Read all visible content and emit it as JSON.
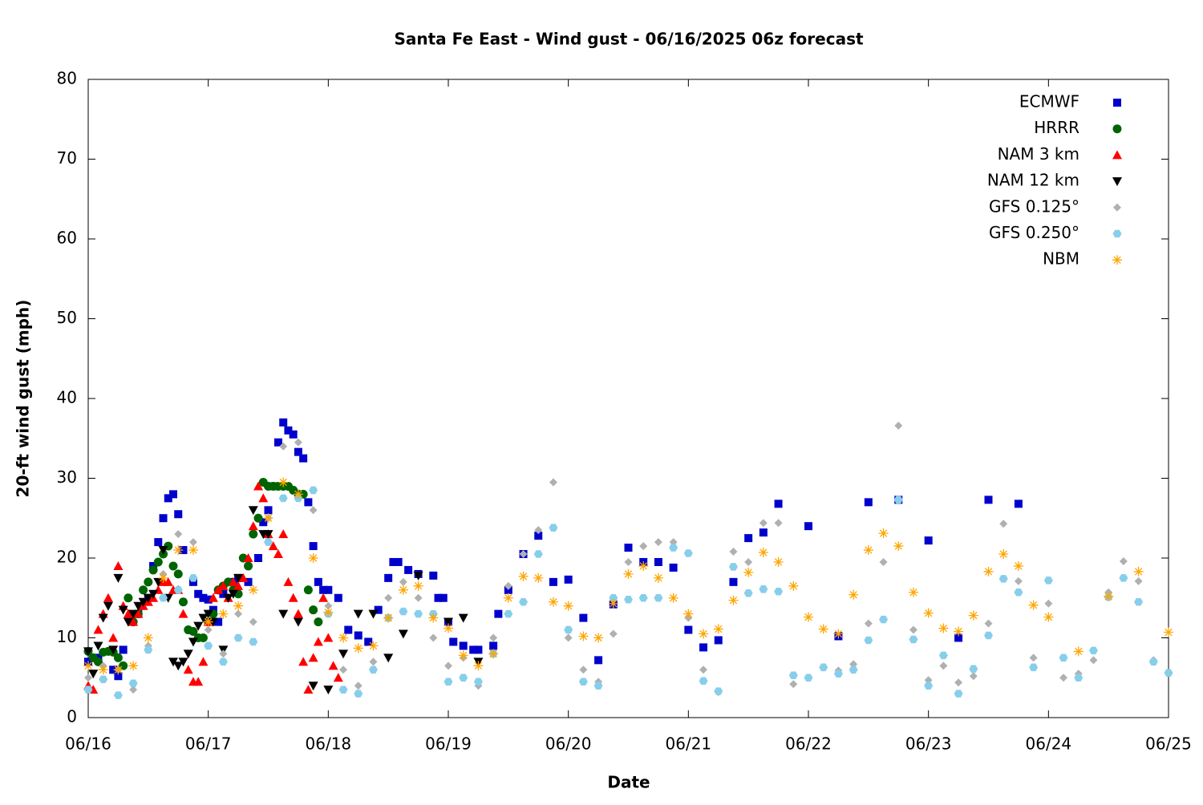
{
  "chart_data": {
    "type": "scatter",
    "title": "Santa Fe East - Wind gust - 06/16/2025 06z forecast",
    "x_label": "Date",
    "y_label": "20-ft wind gust (mph)",
    "xlim": [
      0,
      216
    ],
    "ylim": [
      0,
      80
    ],
    "xticks": [
      {
        "value": 0,
        "label": "06/16"
      },
      {
        "value": 24,
        "label": "06/17"
      },
      {
        "value": 48,
        "label": "06/18"
      },
      {
        "value": 72,
        "label": "06/19"
      },
      {
        "value": 96,
        "label": "06/20"
      },
      {
        "value": 120,
        "label": "06/21"
      },
      {
        "value": 144,
        "label": "06/22"
      },
      {
        "value": 168,
        "label": "06/23"
      },
      {
        "value": 192,
        "label": "06/24"
      },
      {
        "value": 216,
        "label": "06/25"
      }
    ],
    "yticks": [
      0,
      10,
      20,
      30,
      40,
      50,
      60,
      70,
      80
    ],
    "legend": "upper right",
    "series": [
      {
        "name": "ECMWF",
        "color": "#0000cc",
        "marker": "square",
        "x": [
          0,
          2,
          5,
          6,
          7,
          10,
          12,
          13,
          14,
          15,
          16,
          17,
          18,
          19,
          21,
          22,
          23,
          24,
          25,
          26,
          27,
          29,
          30,
          32,
          34,
          35,
          36,
          37,
          38,
          39,
          40,
          41,
          42,
          43,
          44,
          45,
          46,
          47,
          48,
          50,
          52,
          54,
          56,
          58,
          60,
          61,
          62,
          64,
          66,
          69,
          70,
          71,
          72,
          73,
          75,
          77,
          78,
          81,
          82,
          84,
          87,
          90,
          93,
          96,
          99,
          102,
          105,
          108,
          111,
          114,
          117,
          120,
          123,
          126,
          129,
          132,
          135,
          138,
          144,
          150,
          156,
          162,
          168,
          174,
          180,
          186
        ],
        "values": [
          7,
          7.5,
          6,
          5.2,
          8.5,
          13,
          15,
          19,
          22,
          25,
          27.5,
          28,
          25.5,
          21,
          17,
          15.5,
          15,
          14.8,
          13.5,
          12,
          15.5,
          17,
          17.5,
          17,
          20,
          24.5,
          26,
          29,
          34.5,
          37,
          36,
          35.5,
          33.3,
          32.5,
          27,
          21.5,
          17,
          16,
          16,
          15,
          11,
          10.3,
          9.5,
          13.5,
          17.5,
          19.5,
          19.5,
          18.5,
          18,
          17.8,
          15,
          15,
          12,
          9.5,
          9,
          8.5,
          8.5,
          9,
          13,
          16,
          20.5,
          22.8,
          17,
          17.3,
          12.5,
          7.2,
          14.2,
          21.3,
          19.5,
          19.5,
          18.8,
          11,
          8.8,
          9.7,
          17,
          22.5,
          23.2,
          26.8,
          24,
          10.2,
          27,
          27.3,
          22.2,
          10,
          27.3,
          26.8
        ]
      },
      {
        "name": "HRRR",
        "color": "#006400",
        "marker": "circle",
        "x": [
          0,
          1,
          2,
          3,
          4,
          5,
          6,
          7,
          8,
          9,
          10,
          11,
          12,
          13,
          14,
          15,
          16,
          17,
          18,
          19,
          20,
          21,
          22,
          23,
          24,
          25,
          26,
          27,
          28,
          29,
          30,
          31,
          32,
          33,
          34,
          35,
          36,
          37,
          38,
          39,
          40,
          41,
          42,
          43,
          44,
          45,
          46
        ],
        "values": [
          8.3,
          7.5,
          7,
          8.2,
          8.3,
          8.2,
          7.5,
          6.5,
          15,
          12,
          13,
          16,
          17,
          18.5,
          19.5,
          20.5,
          21.5,
          19,
          18,
          14.5,
          11,
          10.8,
          10,
          10,
          12,
          13,
          16,
          16.5,
          17,
          16,
          15.5,
          20,
          19,
          23,
          25,
          29.5,
          29,
          29,
          29,
          29,
          29,
          28.5,
          28,
          28,
          16,
          13.5,
          12
        ]
      },
      {
        "name": "NAM 3 km",
        "color": "#ff0000",
        "marker": "triangle-up",
        "x": [
          0,
          1,
          2,
          3,
          4,
          5,
          6,
          7,
          8,
          9,
          10,
          11,
          12,
          13,
          14,
          15,
          16,
          17,
          18,
          19,
          20,
          21,
          22,
          23,
          24,
          25,
          26,
          27,
          28,
          29,
          30,
          31,
          32,
          33,
          34,
          35,
          36,
          37,
          38,
          39,
          40,
          41,
          42,
          43,
          44,
          45,
          46,
          47,
          48,
          49,
          50
        ],
        "values": [
          4,
          3.5,
          11,
          13,
          15,
          10,
          19,
          14,
          13,
          12,
          13,
          14,
          14.5,
          15,
          16,
          17,
          17,
          16,
          16,
          13,
          6,
          4.5,
          4.5,
          7,
          12,
          15,
          16,
          16.5,
          15,
          17,
          16.5,
          17.5,
          20,
          24,
          29,
          27.5,
          23,
          21.5,
          20.5,
          23,
          17,
          15,
          13,
          7,
          3.5,
          7.5,
          9.5,
          15,
          10,
          6.5,
          5
        ]
      },
      {
        "name": "NAM 12 km",
        "color": "#000000",
        "marker": "triangle-down",
        "x": [
          0,
          1,
          2,
          3,
          4,
          5,
          6,
          7,
          8,
          9,
          10,
          11,
          12,
          13,
          14,
          15,
          16,
          17,
          18,
          19,
          20,
          21,
          22,
          23,
          24,
          25,
          27,
          28,
          29,
          30,
          33,
          35,
          36,
          39,
          42,
          45,
          48,
          51,
          54,
          57,
          60,
          63,
          66,
          72,
          75,
          78
        ],
        "values": [
          8.3,
          5.5,
          9,
          12.5,
          14,
          8.5,
          17.5,
          13.5,
          12,
          13,
          14,
          14.5,
          15,
          15.5,
          17,
          21,
          15,
          7,
          6.5,
          7,
          8,
          9.5,
          11.5,
          12.5,
          13,
          12,
          8.5,
          15,
          15.5,
          17.5,
          26,
          23,
          23,
          13,
          12,
          4,
          3.5,
          8,
          13,
          13,
          7.5,
          10.5,
          17.8,
          12,
          12.5,
          7
        ]
      },
      {
        "name": "GFS 0.125°",
        "color": "#b0b0b0",
        "marker": "diamond",
        "x": [
          0,
          3,
          6,
          9,
          12,
          15,
          18,
          21,
          24,
          27,
          30,
          33,
          36,
          39,
          42,
          45,
          48,
          51,
          54,
          57,
          60,
          63,
          66,
          69,
          72,
          75,
          78,
          81,
          84,
          87,
          90,
          93,
          96,
          99,
          102,
          105,
          108,
          111,
          114,
          117,
          120,
          123,
          126,
          129,
          132,
          135,
          138,
          141,
          144,
          147,
          150,
          153,
          156,
          159,
          162,
          165,
          168,
          171,
          174,
          177,
          180,
          183,
          186,
          189,
          192,
          195,
          198,
          201,
          204,
          207,
          210,
          213,
          216
        ],
        "values": [
          5,
          6.5,
          6,
          3.5,
          9,
          18,
          23,
          22,
          11,
          8,
          13,
          12,
          25,
          34,
          34.5,
          26,
          14,
          6,
          4,
          7,
          15,
          17,
          15,
          10,
          6.5,
          7.5,
          4,
          10,
          16.5,
          20.5,
          23.5,
          29.5,
          10,
          6,
          4.5,
          10.5,
          19.5,
          21.5,
          22,
          22,
          12.5,
          6,
          3.2,
          20.8,
          19.5,
          24.4,
          24.4,
          4.2,
          5,
          6.3,
          5.9,
          6.7,
          11.8,
          19.5,
          36.6,
          11,
          4.7,
          6.5,
          4.4,
          5.2,
          11.8,
          24.3,
          17.1,
          7.5,
          14.3,
          5,
          5.5,
          7.2,
          15.7,
          19.6,
          17.1,
          7.2,
          5.6
        ]
      },
      {
        "name": "GFS 0.250°",
        "color": "#87ceeb",
        "marker": "hexagon",
        "x": [
          0,
          3,
          6,
          9,
          12,
          15,
          18,
          21,
          24,
          27,
          30,
          33,
          36,
          39,
          42,
          45,
          48,
          51,
          54,
          57,
          60,
          63,
          66,
          69,
          72,
          75,
          78,
          81,
          84,
          87,
          90,
          93,
          96,
          99,
          102,
          105,
          108,
          111,
          114,
          117,
          120,
          123,
          126,
          129,
          132,
          135,
          138,
          141,
          144,
          147,
          150,
          153,
          156,
          159,
          162,
          165,
          168,
          171,
          174,
          177,
          180,
          183,
          186,
          189,
          192,
          195,
          198,
          201,
          204,
          207,
          210,
          213,
          216
        ],
        "values": [
          3.5,
          4.8,
          2.8,
          4.3,
          8.5,
          15,
          16,
          17.5,
          9,
          7,
          10,
          9.5,
          22,
          27.5,
          27.5,
          28.5,
          13,
          3.5,
          3,
          6,
          12.5,
          13.3,
          13,
          13,
          4.5,
          5,
          4.5,
          8,
          13,
          14.5,
          20.5,
          23.8,
          11,
          4.5,
          4,
          15,
          14.8,
          15,
          15,
          21.3,
          20.6,
          4.6,
          3.3,
          18.9,
          15.6,
          16.1,
          15.8,
          5.3,
          5,
          6.3,
          5.5,
          6,
          9.7,
          12.3,
          27.3,
          9.8,
          4,
          7.8,
          3,
          6.1,
          10.3,
          17.4,
          15.7,
          6.3,
          17.2,
          7.5,
          5,
          8.4,
          15.1,
          17.5,
          14.5,
          7,
          5.6
        ]
      },
      {
        "name": "NBM",
        "color": "#ffa500",
        "marker": "asterisk",
        "x": [
          0,
          3,
          6,
          9,
          12,
          15,
          18,
          21,
          24,
          27,
          30,
          33,
          36,
          39,
          42,
          45,
          48,
          51,
          54,
          57,
          60,
          63,
          66,
          69,
          72,
          75,
          78,
          81,
          84,
          87,
          90,
          93,
          96,
          99,
          102,
          105,
          108,
          111,
          114,
          117,
          120,
          123,
          126,
          129,
          132,
          135,
          138,
          141,
          144,
          147,
          150,
          153,
          156,
          159,
          162,
          165,
          168,
          171,
          174,
          177,
          180,
          183,
          186,
          189,
          192,
          198,
          204,
          210,
          216
        ],
        "values": [
          6.5,
          6,
          6,
          6.5,
          10,
          17.5,
          21,
          21,
          12,
          13,
          14,
          16,
          25,
          29.5,
          28,
          20,
          13.2,
          10,
          8.7,
          9,
          12.5,
          16,
          16.5,
          12.5,
          11.2,
          7.8,
          6.5,
          8,
          15,
          17.7,
          17.5,
          14.5,
          14,
          10.2,
          10,
          14.3,
          18,
          19,
          17.5,
          15,
          13,
          10.5,
          11.1,
          14.7,
          18.2,
          20.7,
          19.5,
          16.5,
          12.6,
          11.1,
          10.5,
          15.4,
          21,
          23.1,
          21.5,
          15.7,
          13.1,
          11.2,
          10.8,
          12.8,
          18.3,
          20.5,
          19,
          14.1,
          12.6,
          8.3,
          15.2,
          18.3,
          10.7
        ]
      }
    ]
  }
}
